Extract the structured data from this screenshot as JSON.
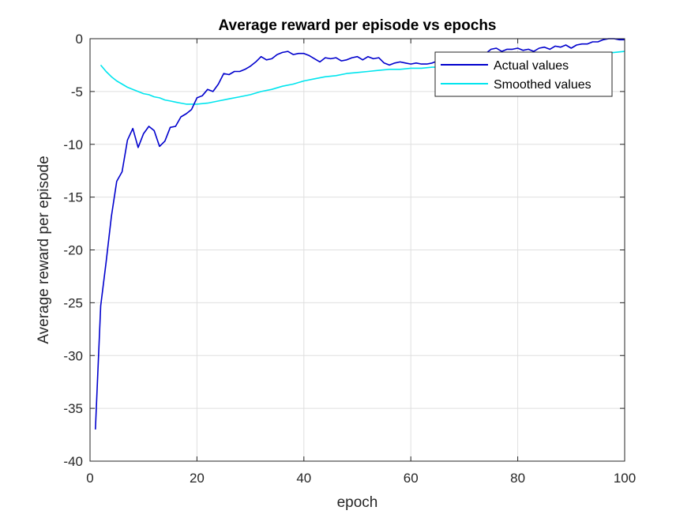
{
  "chart_data": {
    "type": "line",
    "title": "Average reward per episode vs epochs",
    "xlabel": "epoch",
    "ylabel": "Average reward per episode",
    "xlim": [
      0,
      100
    ],
    "ylim": [
      -40,
      0
    ],
    "xticks": [
      0,
      20,
      40,
      60,
      80,
      100
    ],
    "yticks": [
      -40,
      -35,
      -30,
      -25,
      -20,
      -15,
      -10,
      -5,
      0
    ],
    "grid": true,
    "legend_position": "top-right",
    "series": [
      {
        "name": "Actual values",
        "color": "#0000cd",
        "x": [
          1,
          2,
          3,
          4,
          5,
          6,
          7,
          8,
          9,
          10,
          11,
          12,
          13,
          14,
          15,
          16,
          17,
          18,
          19,
          20,
          21,
          22,
          23,
          24,
          25,
          26,
          27,
          28,
          29,
          30,
          31,
          32,
          33,
          34,
          35,
          36,
          37,
          38,
          39,
          40,
          41,
          42,
          43,
          44,
          45,
          46,
          47,
          48,
          49,
          50,
          51,
          52,
          53,
          54,
          55,
          56,
          57,
          58,
          59,
          60,
          61,
          62,
          63,
          64,
          65,
          66,
          67,
          68,
          69,
          70,
          71,
          72,
          73,
          74,
          75,
          76,
          77,
          78,
          79,
          80,
          81,
          82,
          83,
          84,
          85,
          86,
          87,
          88,
          89,
          90,
          91,
          92,
          93,
          94,
          95,
          96,
          97,
          98,
          99,
          100
        ],
        "y": [
          -37,
          -25.3,
          -21.2,
          -16.8,
          -13.5,
          -12.6,
          -9.6,
          -8.5,
          -10.3,
          -9.0,
          -8.3,
          -8.7,
          -10.2,
          -9.7,
          -8.4,
          -8.3,
          -7.4,
          -7.1,
          -6.7,
          -5.6,
          -5.4,
          -4.8,
          -5.0,
          -4.3,
          -3.3,
          -3.4,
          -3.1,
          -3.1,
          -2.9,
          -2.6,
          -2.2,
          -1.7,
          -2.0,
          -1.9,
          -1.5,
          -1.3,
          -1.2,
          -1.5,
          -1.4,
          -1.4,
          -1.6,
          -1.9,
          -2.2,
          -1.8,
          -1.9,
          -1.8,
          -2.1,
          -2.0,
          -1.8,
          -1.7,
          -2.0,
          -1.7,
          -1.9,
          -1.8,
          -2.3,
          -2.5,
          -2.3,
          -2.2,
          -2.3,
          -2.4,
          -2.3,
          -2.4,
          -2.4,
          -2.3,
          -2.1,
          -2.0,
          -1.9,
          -2.1,
          -1.8,
          -1.6,
          -1.7,
          -1.6,
          -1.5,
          -1.4,
          -1.0,
          -0.9,
          -1.2,
          -1.0,
          -1.0,
          -0.9,
          -1.1,
          -1.0,
          -1.2,
          -0.9,
          -0.8,
          -1.0,
          -0.7,
          -0.8,
          -0.6,
          -0.9,
          -0.6,
          -0.5,
          -0.5,
          -0.3,
          -0.3,
          -0.1,
          0,
          0,
          -0.1,
          -0.1
        ]
      },
      {
        "name": "Smoothed values",
        "color": "#00e5ee",
        "x": [
          2,
          3,
          4,
          5,
          6,
          7,
          8,
          9,
          10,
          11,
          12,
          13,
          14,
          15,
          16,
          17,
          18,
          19,
          20,
          22,
          24,
          26,
          28,
          30,
          32,
          34,
          36,
          38,
          40,
          42,
          44,
          46,
          48,
          50,
          52,
          54,
          56,
          58,
          60,
          62,
          64,
          66,
          68,
          70,
          72,
          74,
          76,
          78,
          80,
          82,
          84,
          86,
          88,
          90,
          92,
          94,
          96,
          98,
          100
        ],
        "y": [
          -2.5,
          -3.1,
          -3.6,
          -4.0,
          -4.3,
          -4.6,
          -4.8,
          -5.0,
          -5.2,
          -5.3,
          -5.5,
          -5.6,
          -5.8,
          -5.9,
          -6.0,
          -6.1,
          -6.2,
          -6.2,
          -6.2,
          -6.1,
          -5.9,
          -5.7,
          -5.5,
          -5.3,
          -5.0,
          -4.8,
          -4.5,
          -4.3,
          -4.0,
          -3.8,
          -3.6,
          -3.5,
          -3.3,
          -3.2,
          -3.1,
          -3.0,
          -2.9,
          -2.9,
          -2.8,
          -2.8,
          -2.7,
          -2.7,
          -2.6,
          -2.6,
          -2.5,
          -2.4,
          -2.4,
          -2.3,
          -2.2,
          -2.1,
          -2.0,
          -1.9,
          -1.8,
          -1.7,
          -1.6,
          -1.5,
          -1.4,
          -1.3,
          -1.2
        ]
      }
    ]
  }
}
